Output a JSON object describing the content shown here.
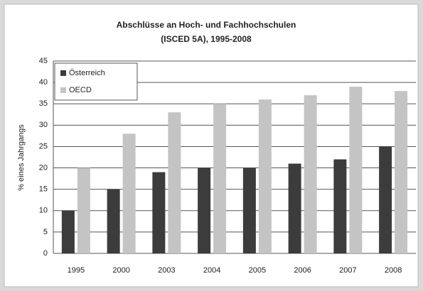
{
  "chart_data": {
    "type": "bar",
    "title": [
      "Abschlüsse an Hoch- und Fachhochschulen",
      "(ISCED 5A), 1995-2008"
    ],
    "y_label": "% eines Jahrgangs",
    "categories": [
      "1995",
      "2000",
      "2003",
      "2004",
      "2005",
      "2006",
      "2007",
      "2008"
    ],
    "series": [
      {
        "name": "Österreich",
        "color": "#3c3c3c",
        "values": [
          10,
          15,
          19,
          20,
          20,
          21,
          22,
          25
        ]
      },
      {
        "name": "OECD",
        "color": "#c4c4c4",
        "values": [
          20,
          28,
          33,
          35,
          36,
          37,
          39,
          38
        ]
      }
    ],
    "ylim": [
      0,
      45
    ],
    "yticks": [
      0,
      5,
      10,
      15,
      20,
      25,
      30,
      35,
      40,
      45
    ],
    "grid": true,
    "legend": "top-left"
  }
}
